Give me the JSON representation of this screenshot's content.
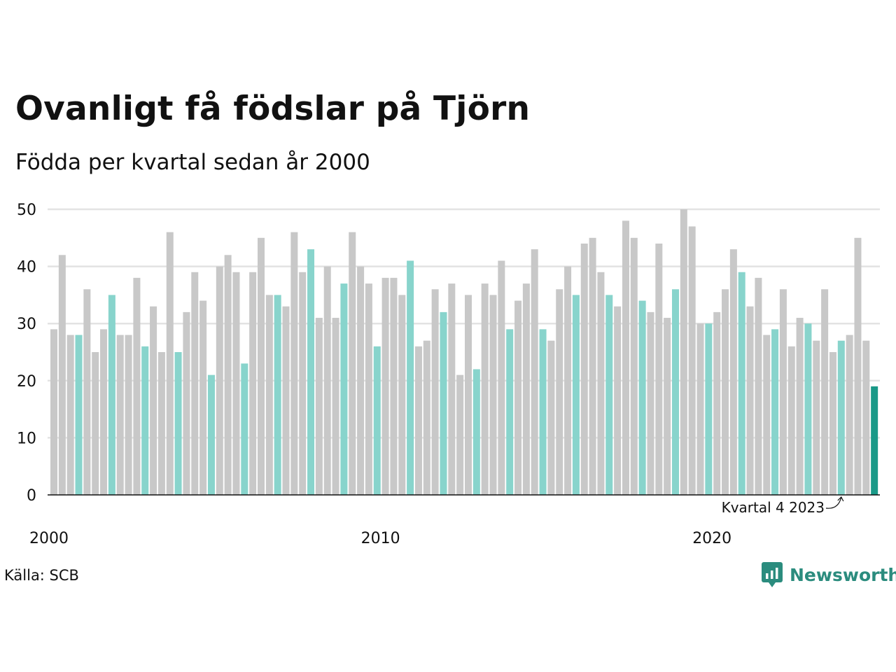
{
  "title": "Ovanligt få födslar på Tjörn",
  "subtitle": "Födda per kvartal sedan år 2000",
  "source": "Källa: SCB",
  "brand": "Newsworthy",
  "colors": {
    "bar_default": "#c8c8c8",
    "bar_quarter4": "#88d4cc",
    "bar_latest": "#1a9988",
    "grid": "#e3e3e3",
    "axis": "#111111",
    "brand": "#2b8c7e"
  },
  "chart_data": {
    "type": "bar",
    "title": "Ovanligt få födslar på Tjörn",
    "subtitle": "Födda per kvartal sedan år 2000",
    "xlabel": "",
    "ylabel": "",
    "ylim": [
      0,
      50
    ],
    "yticks": [
      0,
      10,
      20,
      30,
      40,
      50
    ],
    "xticks": [
      "2000",
      "2010",
      "2020"
    ],
    "grid": true,
    "start_year": 2000,
    "values": [
      29,
      42,
      28,
      28,
      36,
      25,
      29,
      35,
      28,
      28,
      38,
      26,
      33,
      25,
      46,
      25,
      32,
      39,
      34,
      21,
      40,
      42,
      39,
      23,
      39,
      45,
      35,
      35,
      33,
      46,
      39,
      43,
      31,
      40,
      31,
      37,
      46,
      40,
      37,
      26,
      38,
      38,
      35,
      41,
      26,
      27,
      36,
      32,
      37,
      21,
      35,
      22,
      37,
      35,
      41,
      29,
      34,
      37,
      43,
      29,
      27,
      36,
      40,
      35,
      44,
      45,
      39,
      35,
      33,
      48,
      45,
      34,
      32,
      44,
      31,
      36,
      50,
      47,
      30,
      30,
      32,
      36,
      43,
      39,
      33,
      38,
      28,
      29,
      36,
      26,
      31,
      30,
      27,
      36,
      25,
      27,
      28,
      45,
      27,
      19
    ],
    "highlight": "Kvartal 4",
    "annotation": "Kvartal 4 2023"
  }
}
